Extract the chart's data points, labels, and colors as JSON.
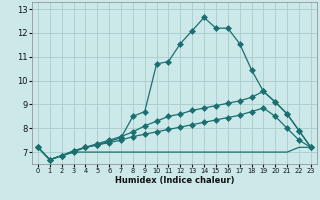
{
  "xlabel": "Humidex (Indice chaleur)",
  "xlim": [
    -0.5,
    23.5
  ],
  "ylim": [
    6.5,
    13.3
  ],
  "yticks": [
    7,
    8,
    9,
    10,
    11,
    12,
    13
  ],
  "xticks": [
    0,
    1,
    2,
    3,
    4,
    5,
    6,
    7,
    8,
    9,
    10,
    11,
    12,
    13,
    14,
    15,
    16,
    17,
    18,
    19,
    20,
    21,
    22,
    23
  ],
  "background_color": "#cce8e8",
  "grid_color": "#aacccc",
  "line_color": "#1a7070",
  "line1_x": [
    0,
    1,
    2,
    3,
    4,
    5,
    6,
    7,
    8,
    9,
    10,
    11,
    12,
    13,
    14,
    15,
    16,
    17,
    18,
    19,
    20,
    21,
    22,
    23
  ],
  "line1_y": [
    7.2,
    6.68,
    6.85,
    7.0,
    7.2,
    7.3,
    7.45,
    7.6,
    8.5,
    8.7,
    10.7,
    10.8,
    11.55,
    12.1,
    12.65,
    12.2,
    12.2,
    11.55,
    10.45,
    9.55,
    9.1,
    8.6,
    7.9,
    7.2
  ],
  "line2_x": [
    0,
    1,
    2,
    3,
    4,
    5,
    6,
    7,
    8,
    9,
    10,
    11,
    12,
    13,
    14,
    15,
    16,
    17,
    18,
    19,
    20,
    21,
    22,
    23
  ],
  "line2_y": [
    7.2,
    6.68,
    6.85,
    7.05,
    7.2,
    7.35,
    7.5,
    7.65,
    7.85,
    8.1,
    8.3,
    8.5,
    8.6,
    8.75,
    8.85,
    8.95,
    9.05,
    9.15,
    9.3,
    9.55,
    9.1,
    8.6,
    7.9,
    7.2
  ],
  "line3_x": [
    0,
    1,
    2,
    3,
    4,
    5,
    6,
    7,
    8,
    9,
    10,
    11,
    12,
    13,
    14,
    15,
    16,
    17,
    18,
    19,
    20,
    21,
    22,
    23
  ],
  "line3_y": [
    7.2,
    6.68,
    6.85,
    7.05,
    7.2,
    7.3,
    7.4,
    7.5,
    7.65,
    7.75,
    7.85,
    7.95,
    8.05,
    8.15,
    8.25,
    8.35,
    8.45,
    8.55,
    8.7,
    8.85,
    8.5,
    8.0,
    7.5,
    7.2
  ],
  "line4_x": [
    0,
    1,
    2,
    3,
    4,
    5,
    6,
    7,
    8,
    9,
    10,
    11,
    12,
    13,
    14,
    15,
    16,
    17,
    18,
    19,
    20,
    21,
    22,
    23
  ],
  "line4_y": [
    7.2,
    6.68,
    6.85,
    7.0,
    7.0,
    7.0,
    7.0,
    7.0,
    7.0,
    7.0,
    7.0,
    7.0,
    7.0,
    7.0,
    7.0,
    7.0,
    7.0,
    7.0,
    7.0,
    7.0,
    7.0,
    7.0,
    7.2,
    7.2
  ]
}
